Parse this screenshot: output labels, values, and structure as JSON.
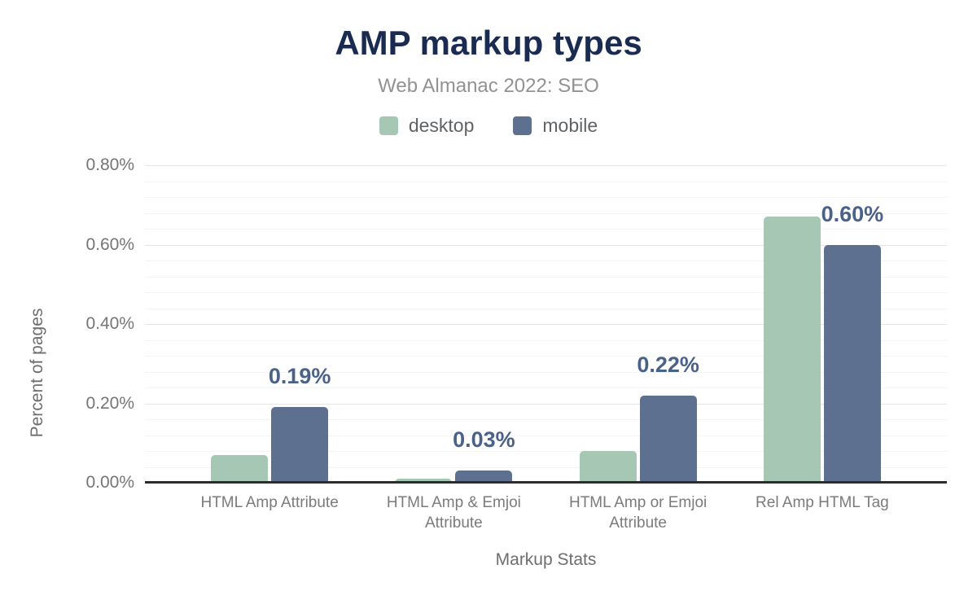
{
  "chart_data": {
    "type": "bar",
    "title": "AMP markup types",
    "subtitle": "Web Almanac 2022: SEO",
    "xlabel": "Markup Stats",
    "ylabel": "Percent of pages",
    "categories": [
      "HTML Amp Attribute",
      "HTML Amp & Emjoi Attribute",
      "HTML Amp or Emjoi Attribute",
      "Rel Amp HTML Tag"
    ],
    "series": [
      {
        "name": "desktop",
        "color": "#a5c7b4",
        "values": [
          0.07,
          0.01,
          0.08,
          0.67
        ]
      },
      {
        "name": "mobile",
        "color": "#5d7090",
        "values": [
          0.19,
          0.03,
          0.22,
          0.6
        ],
        "data_labels": [
          "0.19%",
          "0.03%",
          "0.22%",
          "0.60%"
        ]
      }
    ],
    "ylim": [
      0,
      0.8
    ],
    "yticks": [
      {
        "value": 0.0,
        "label": "0.00%"
      },
      {
        "value": 0.2,
        "label": "0.20%"
      },
      {
        "value": 0.4,
        "label": "0.40%"
      },
      {
        "value": 0.6,
        "label": "0.60%"
      },
      {
        "value": 0.8,
        "label": "0.80%"
      }
    ],
    "minor_grid_step": 0.04,
    "grid": true,
    "legend_position": "top"
  },
  "colors": {
    "title": "#1a2b52",
    "subtitle": "#929292",
    "data_label": "#4a6289",
    "axis_line": "#2d2d2d",
    "grid_major": "#e4e4e4",
    "grid_minor": "#f4f4f4",
    "tick_text": "#757575"
  }
}
